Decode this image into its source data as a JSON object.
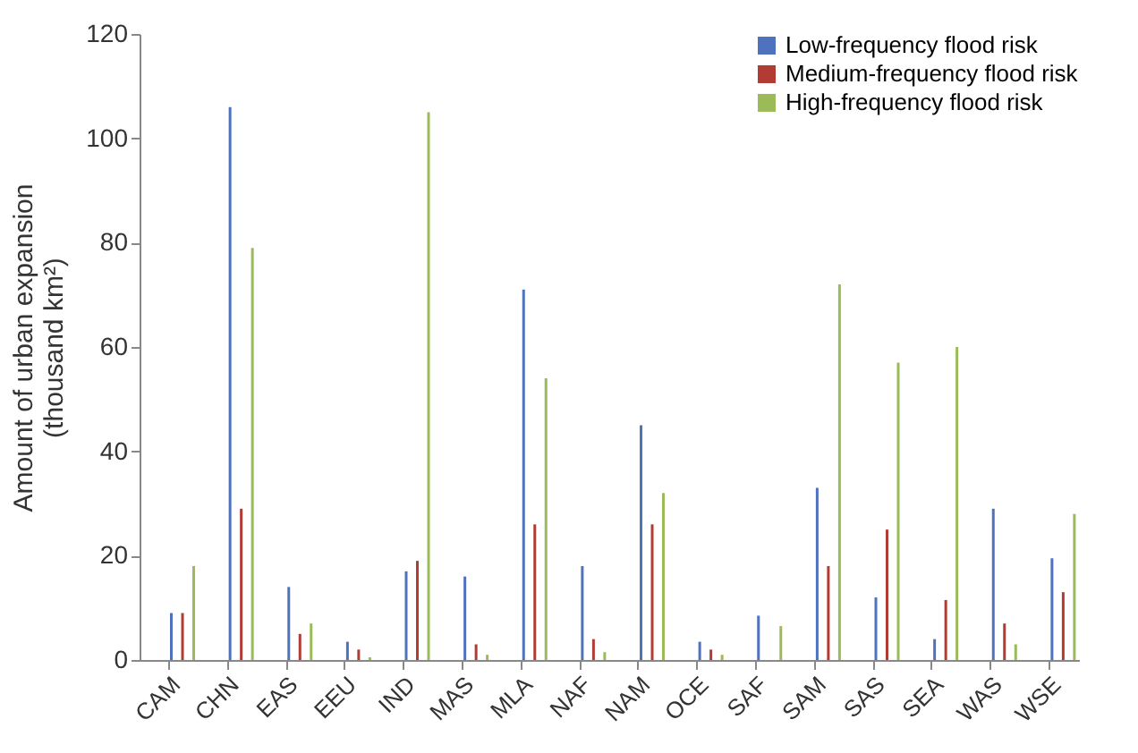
{
  "chart_data": {
    "type": "bar",
    "ylabel": "Amount of urban expansion\n(thousand km²)",
    "categories": [
      "CAM",
      "CHN",
      "EAS",
      "EEU",
      "IND",
      "MAS",
      "MLA",
      "NAF",
      "NAM",
      "OCE",
      "SAF",
      "SAM",
      "SAS",
      "SEA",
      "WAS",
      "WSE"
    ],
    "series": [
      {
        "name": "Low-frequency flood risk",
        "color": "#4f72be",
        "values": [
          9,
          106,
          14,
          3.5,
          17,
          16,
          71,
          18,
          45,
          3.5,
          8.5,
          33,
          12,
          4,
          29,
          19.5
        ]
      },
      {
        "name": "Medium-frequency flood risk",
        "color": "#b23b33",
        "values": [
          9,
          29,
          5,
          2,
          19,
          3,
          26,
          4,
          26,
          2,
          0,
          18,
          25,
          11.5,
          7,
          13
        ]
      },
      {
        "name": "High-frequency flood risk",
        "color": "#9bbb59",
        "values": [
          18,
          79,
          7,
          0.5,
          105,
          1,
          54,
          1.5,
          32,
          1,
          6.5,
          72,
          57,
          60,
          3,
          28
        ]
      }
    ],
    "ylim": [
      0,
      120
    ],
    "yticks": [
      0,
      20,
      40,
      60,
      80,
      100,
      120
    ],
    "grid": false,
    "legend": "top right"
  }
}
